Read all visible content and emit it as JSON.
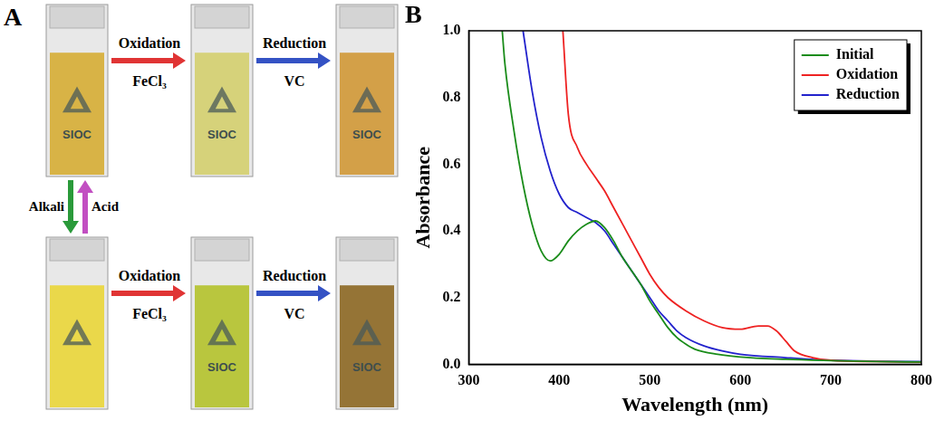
{
  "panel_a": {
    "label": "A",
    "cuvette_text": "SIOC",
    "oxidation_label": "Oxidation",
    "oxidant": "FeCl₃",
    "reduction_label": "Reduction",
    "reductant": "VC",
    "down_label": "Alkali",
    "up_label": "Acid"
  },
  "chart_data": {
    "panel_label": "B",
    "type": "line",
    "x_label": "Wavelength (nm)",
    "y_label": "Absorbance",
    "xlim": [
      300,
      800
    ],
    "xticks": [
      300,
      400,
      500,
      600,
      700,
      800
    ],
    "ylim": [
      0,
      1
    ],
    "yticks": [
      {
        "value": 0,
        "label": "0.0"
      },
      {
        "value": 0.2,
        "label": "0.2"
      },
      {
        "value": 0.4,
        "label": "0.4"
      },
      {
        "value": 0.6,
        "label": "0.6"
      },
      {
        "value": 0.8,
        "label": "0.8"
      },
      {
        "value": 1,
        "label": "1.0"
      }
    ],
    "grid": false,
    "legend": "upper right",
    "series": [
      {
        "name": "Initial",
        "color": "#1a8c1a",
        "x": [
          337,
          340,
          350,
          360,
          370,
          380,
          390,
          400,
          410,
          420,
          430,
          440,
          450,
          460,
          470,
          480,
          490,
          500,
          510,
          520,
          530,
          540,
          550,
          575,
          600,
          650,
          700,
          750,
          800
        ],
        "values": [
          1.0,
          0.9,
          0.7,
          0.54,
          0.42,
          0.34,
          0.31,
          0.33,
          0.37,
          0.4,
          0.42,
          0.43,
          0.41,
          0.37,
          0.32,
          0.28,
          0.24,
          0.19,
          0.15,
          0.11,
          0.08,
          0.06,
          0.045,
          0.03,
          0.022,
          0.015,
          0.011,
          0.008,
          0.007
        ]
      },
      {
        "name": "Oxidation",
        "color": "#ee2222",
        "x": [
          404,
          410,
          420,
          430,
          440,
          450,
          460,
          470,
          480,
          490,
          500,
          510,
          520,
          540,
          560,
          580,
          600,
          620,
          630,
          640,
          650,
          660,
          680,
          700,
          750,
          800
        ],
        "values": [
          1.0,
          0.75,
          0.65,
          0.6,
          0.56,
          0.52,
          0.47,
          0.42,
          0.37,
          0.32,
          0.27,
          0.23,
          0.2,
          0.16,
          0.13,
          0.11,
          0.105,
          0.115,
          0.115,
          0.1,
          0.07,
          0.04,
          0.02,
          0.012,
          0.008,
          0.006
        ]
      },
      {
        "name": "Reduction",
        "color": "#2222cc",
        "x": [
          360,
          370,
          380,
          390,
          400,
          410,
          420,
          430,
          440,
          450,
          460,
          470,
          480,
          490,
          500,
          510,
          520,
          530,
          540,
          560,
          580,
          600,
          650,
          700,
          750,
          800
        ],
        "values": [
          1.0,
          0.82,
          0.68,
          0.58,
          0.51,
          0.47,
          0.455,
          0.44,
          0.425,
          0.4,
          0.36,
          0.32,
          0.28,
          0.24,
          0.2,
          0.16,
          0.13,
          0.1,
          0.08,
          0.055,
          0.04,
          0.03,
          0.02,
          0.012,
          0.009,
          0.008
        ]
      }
    ]
  }
}
